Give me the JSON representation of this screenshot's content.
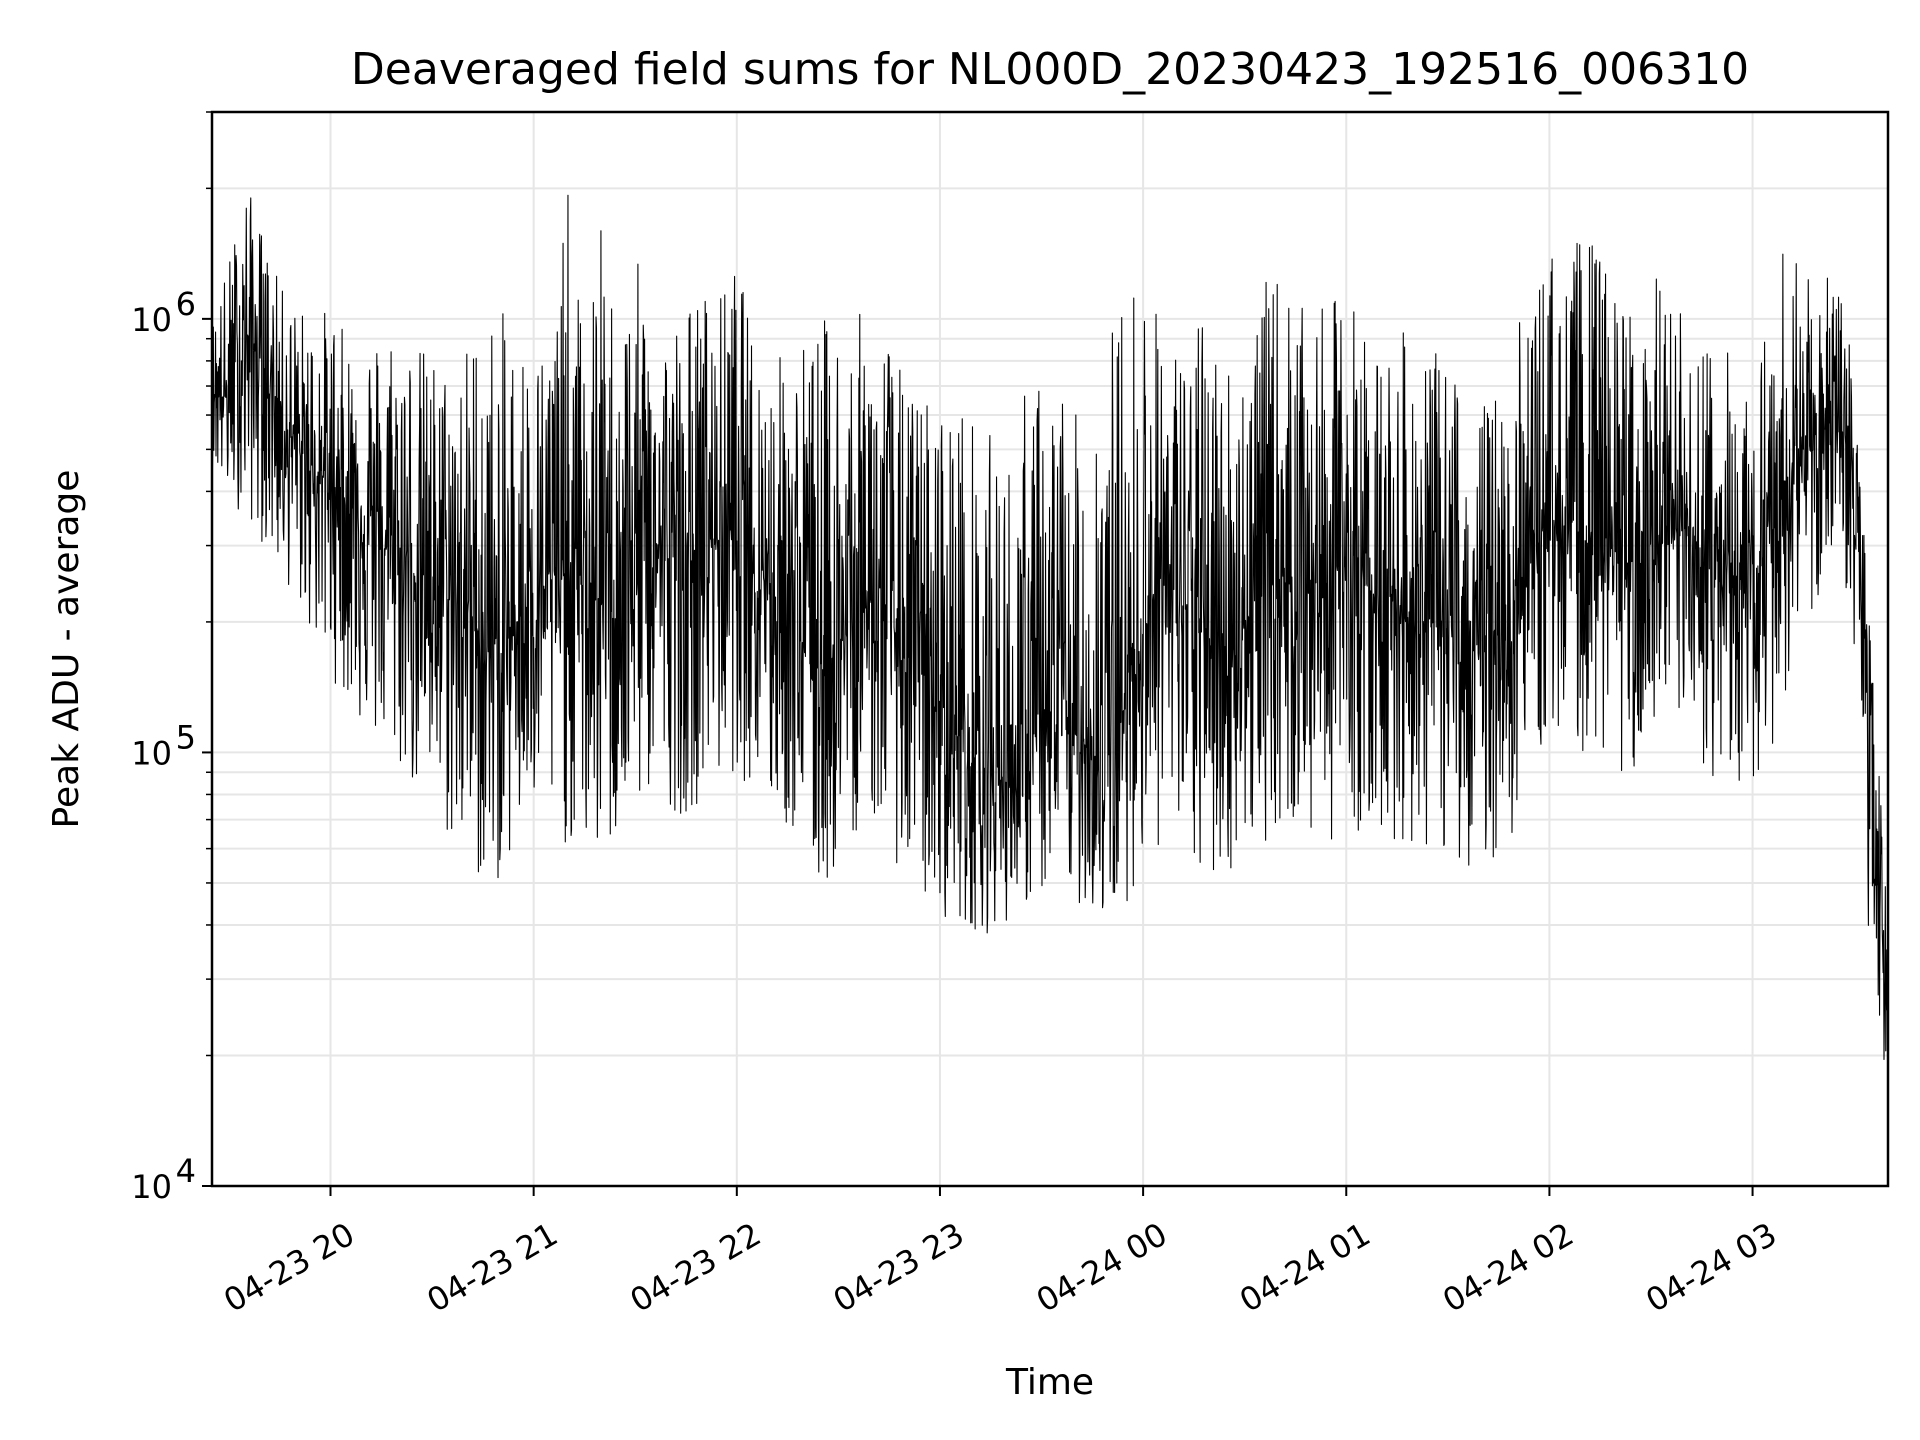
{
  "chart_data": {
    "type": "line",
    "title": "Deaveraged field sums for NL000D_20230423_192516_006310",
    "xlabel": "Time",
    "ylabel": "Peak ADU - average",
    "yscale": "log",
    "ylim": [
      10000,
      3000000
    ],
    "y_ticks": [
      {
        "value": 10000,
        "base": "10",
        "exp": "4"
      },
      {
        "value": 100000,
        "base": "10",
        "exp": "5"
      },
      {
        "value": 1000000,
        "base": "10",
        "exp": "6"
      }
    ],
    "xlim": [
      "2023-04-23 19:25",
      "2023-04-24 03:40"
    ],
    "x_ticks": [
      {
        "time": "2023-04-23 20:00",
        "label": "04-23 20"
      },
      {
        "time": "2023-04-23 21:00",
        "label": "04-23 21"
      },
      {
        "time": "2023-04-23 22:00",
        "label": "04-23 22"
      },
      {
        "time": "2023-04-23 23:00",
        "label": "04-23 23"
      },
      {
        "time": "2023-04-24 00:00",
        "label": "04-24 00"
      },
      {
        "time": "2023-04-24 01:00",
        "label": "04-24 01"
      },
      {
        "time": "2023-04-24 02:00",
        "label": "04-24 02"
      },
      {
        "time": "2023-04-24 03:00",
        "label": "04-24 03"
      }
    ],
    "grid": true,
    "line_color": "#000000",
    "grid_color": "#e6e6e6",
    "series": [
      {
        "x": [
          "2023-04-23 19:25",
          "2023-04-23 19:30",
          "2023-04-23 19:35",
          "2023-04-23 19:40",
          "2023-04-23 19:45",
          "2023-04-23 19:50",
          "2023-04-23 19:55",
          "2023-04-23 20:00",
          "2023-04-23 20:05",
          "2023-04-23 20:10",
          "2023-04-23 20:15",
          "2023-04-23 20:20",
          "2023-04-23 20:25",
          "2023-04-23 20:30",
          "2023-04-23 20:35",
          "2023-04-23 20:40",
          "2023-04-23 20:45",
          "2023-04-23 20:50",
          "2023-04-23 20:55",
          "2023-04-23 21:00",
          "2023-04-23 21:05",
          "2023-04-23 21:10",
          "2023-04-23 21:15",
          "2023-04-23 21:20",
          "2023-04-23 21:25",
          "2023-04-23 21:30",
          "2023-04-23 21:35",
          "2023-04-23 21:40",
          "2023-04-23 21:45",
          "2023-04-23 21:50",
          "2023-04-23 21:55",
          "2023-04-23 22:00",
          "2023-04-23 22:05",
          "2023-04-23 22:10",
          "2023-04-23 22:15",
          "2023-04-23 22:20",
          "2023-04-23 22:25",
          "2023-04-23 22:30",
          "2023-04-23 22:35",
          "2023-04-23 22:40",
          "2023-04-23 22:45",
          "2023-04-23 22:50",
          "2023-04-23 22:55",
          "2023-04-23 23:00",
          "2023-04-23 23:05",
          "2023-04-23 23:10",
          "2023-04-23 23:15",
          "2023-04-23 23:20",
          "2023-04-23 23:25",
          "2023-04-23 23:30",
          "2023-04-23 23:35",
          "2023-04-23 23:40",
          "2023-04-23 23:45",
          "2023-04-23 23:50",
          "2023-04-23 23:55",
          "2023-04-24 00:00",
          "2023-04-24 00:05",
          "2023-04-24 00:10",
          "2023-04-24 00:15",
          "2023-04-24 00:20",
          "2023-04-24 00:25",
          "2023-04-24 00:30",
          "2023-04-24 00:35",
          "2023-04-24 00:40",
          "2023-04-24 00:45",
          "2023-04-24 00:50",
          "2023-04-24 00:55",
          "2023-04-24 01:00",
          "2023-04-24 01:05",
          "2023-04-24 01:10",
          "2023-04-24 01:15",
          "2023-04-24 01:20",
          "2023-04-24 01:25",
          "2023-04-24 01:30",
          "2023-04-24 01:35",
          "2023-04-24 01:40",
          "2023-04-24 01:45",
          "2023-04-24 01:50",
          "2023-04-24 01:55",
          "2023-04-24 02:00",
          "2023-04-24 02:05",
          "2023-04-24 02:10",
          "2023-04-24 02:15",
          "2023-04-24 02:20",
          "2023-04-24 02:25",
          "2023-04-24 02:30",
          "2023-04-24 02:35",
          "2023-04-24 02:40",
          "2023-04-24 02:45",
          "2023-04-24 02:50",
          "2023-04-24 02:55",
          "2023-04-24 03:00",
          "2023-04-24 03:05",
          "2023-04-24 03:10",
          "2023-04-24 03:15",
          "2023-04-24 03:20",
          "2023-04-24 03:25",
          "2023-04-24 03:30",
          "2023-04-24 03:35",
          "2023-04-24 03:40"
        ],
        "y": [
          700000,
          650000,
          900000,
          800000,
          600000,
          500000,
          450000,
          420000,
          380000,
          350000,
          300000,
          280000,
          260000,
          250000,
          230000,
          220000,
          180000,
          150000,
          200000,
          230000,
          250000,
          260000,
          240000,
          220000,
          250000,
          270000,
          300000,
          280000,
          260000,
          300000,
          320000,
          330000,
          300000,
          250000,
          200000,
          180000,
          160000,
          170000,
          200000,
          230000,
          200000,
          170000,
          150000,
          130000,
          110000,
          95000,
          90000,
          85000,
          100000,
          110000,
          120000,
          110000,
          100000,
          95000,
          130000,
          200000,
          250000,
          230000,
          200000,
          180000,
          170000,
          200000,
          230000,
          250000,
          260000,
          240000,
          260000,
          280000,
          250000,
          230000,
          220000,
          210000,
          200000,
          190000,
          180000,
          170000,
          190000,
          220000,
          280000,
          350000,
          330000,
          310000,
          300000,
          280000,
          270000,
          290000,
          300000,
          320000,
          280000,
          250000,
          230000,
          260000,
          300000,
          420000,
          500000,
          550000,
          600000,
          450000,
          120000,
          25000
        ],
        "y_low": [
          450000,
          380000,
          350000,
          300000,
          260000,
          220000,
          180000,
          150000,
          130000,
          110000,
          100000,
          90000,
          80000,
          75000,
          60000,
          55000,
          48000,
          50000,
          60000,
          70000,
          65000,
          60000,
          58000,
          55000,
          60000,
          70000,
          80000,
          75000,
          70000,
          80000,
          85000,
          90000,
          80000,
          70000,
          65000,
          60000,
          45000,
          55000,
          65000,
          70000,
          60000,
          50000,
          45000,
          42000,
          40000,
          39000,
          38000,
          41000,
          44000,
          46000,
          50000,
          45000,
          42000,
          40000,
          45000,
          55000,
          60000,
          55000,
          50000,
          48000,
          52000,
          58000,
          62000,
          64000,
          66000,
          60000,
          62000,
          68000,
          64000,
          60000,
          62000,
          60000,
          58000,
          57000,
          55000,
          52000,
          58000,
          65000,
          90000,
          110000,
          105000,
          100000,
          95000,
          90000,
          88000,
          92000,
          95000,
          100000,
          90000,
          85000,
          80000,
          82000,
          95000,
          140000,
          180000,
          220000,
          260000,
          150000,
          30000,
          13000
        ],
        "y_high": [
          1000000,
          1400000,
          2100000,
          1600000,
          1200000,
          1100000,
          1000000,
          1100000,
          900000,
          1000000,
          950000,
          1100000,
          900000,
          850000,
          800000,
          900000,
          1100000,
          1050000,
          1000000,
          900000,
          950000,
          2000000,
          900000,
          1700000,
          1000000,
          1400000,
          1100000,
          1000000,
          1100000,
          1200000,
          1150000,
          1400000,
          900000,
          800000,
          900000,
          950000,
          1000000,
          1100000,
          1050000,
          1000000,
          950000,
          700000,
          700000,
          650000,
          700000,
          600000,
          550000,
          500000,
          700000,
          750000,
          800000,
          600000,
          900000,
          1000000,
          1200000,
          1400000,
          1000000,
          900000,
          950000,
          1100000,
          850000,
          900000,
          1200000,
          1300000,
          1100000,
          1000000,
          1100000,
          1200000,
          1000000,
          900000,
          950000,
          900000,
          850000,
          800000,
          750000,
          650000,
          700000,
          950000,
          1200000,
          1500000,
          1300000,
          1700000,
          1400000,
          1200000,
          1100000,
          1300000,
          1200000,
          1000000,
          950000,
          900000,
          850000,
          900000,
          1000000,
          1700000,
          1300000,
          1200000,
          1300000,
          800000,
          170000,
          50000
        ]
      }
    ]
  }
}
